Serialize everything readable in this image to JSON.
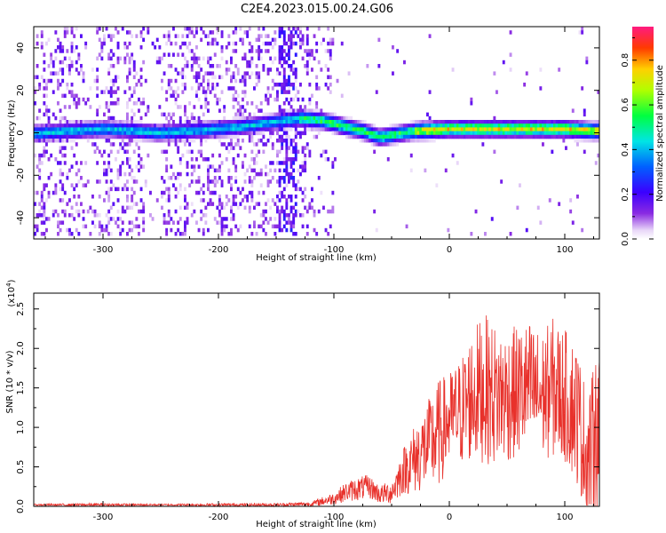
{
  "title": "C2E4.2023.015.00.24.G06",
  "chart_data": [
    {
      "type": "heatmap",
      "xlabel": "Height of straight line (km)",
      "ylabel": "Frequency (Hz)",
      "xlim": [
        -360,
        130
      ],
      "ylim": [
        -50,
        50
      ],
      "xticks": [
        -300,
        -200,
        -100,
        0,
        100
      ],
      "yticks": [
        -40,
        -20,
        0,
        20,
        40
      ],
      "colorbar": {
        "label": "Normalized spectral amplitude",
        "range": [
          0.0,
          0.95
        ],
        "ticks": [
          "0.0",
          "0.2",
          "0.4",
          "0.6",
          "0.8"
        ]
      },
      "main_ridge": {
        "description_points_km_hz": [
          [
            -355,
            -1
          ],
          [
            -330,
            0
          ],
          [
            -300,
            1
          ],
          [
            -270,
            0
          ],
          [
            -250,
            -1
          ],
          [
            -200,
            1
          ],
          [
            -180,
            2
          ],
          [
            -130,
            6
          ],
          [
            -110,
            5
          ],
          [
            -90,
            2
          ],
          [
            -75,
            0
          ],
          [
            -60,
            -3
          ],
          [
            -50,
            -2
          ],
          [
            -30,
            0
          ],
          [
            0,
            1
          ],
          [
            50,
            1
          ],
          [
            100,
            1
          ],
          [
            125,
            0
          ]
        ]
      }
    },
    {
      "type": "line",
      "xlabel": "Height of straight line (km)",
      "ylabel": "SNR (10 * v/v)",
      "y_multiplier": "(x10^4)",
      "xlim": [
        -360,
        130
      ],
      "ylim": [
        0,
        2.7
      ],
      "xticks": [
        -300,
        -200,
        -100,
        0,
        100
      ],
      "yticks": [
        "0.0",
        "0.5",
        "1.0",
        "1.5",
        "2.0",
        "2.5"
      ],
      "color": "#e8312b",
      "envelope_x": [
        -360,
        -300,
        -250,
        -200,
        -150,
        -120,
        -100,
        -90,
        -80,
        -70,
        -60,
        -50,
        -40,
        -30,
        -20,
        -10,
        0,
        10,
        20,
        30,
        40,
        50,
        60,
        70,
        80,
        90,
        100,
        110,
        120,
        128
      ],
      "envelope_mid": [
        0.02,
        0.02,
        0.02,
        0.02,
        0.02,
        0.03,
        0.1,
        0.18,
        0.22,
        0.25,
        0.15,
        0.18,
        0.45,
        0.6,
        0.75,
        0.9,
        1.1,
        1.2,
        1.4,
        1.5,
        1.4,
        1.4,
        1.45,
        1.5,
        1.4,
        1.5,
        1.4,
        1.2,
        0.6,
        1.0
      ],
      "envelope_amp": [
        0.01,
        0.02,
        0.01,
        0.02,
        0.02,
        0.03,
        0.08,
        0.12,
        0.15,
        0.15,
        0.12,
        0.15,
        0.3,
        0.45,
        0.55,
        0.7,
        0.6,
        0.7,
        0.85,
        0.95,
        0.9,
        0.85,
        0.85,
        0.85,
        0.8,
        0.9,
        0.85,
        0.9,
        0.8,
        1.0
      ]
    }
  ]
}
